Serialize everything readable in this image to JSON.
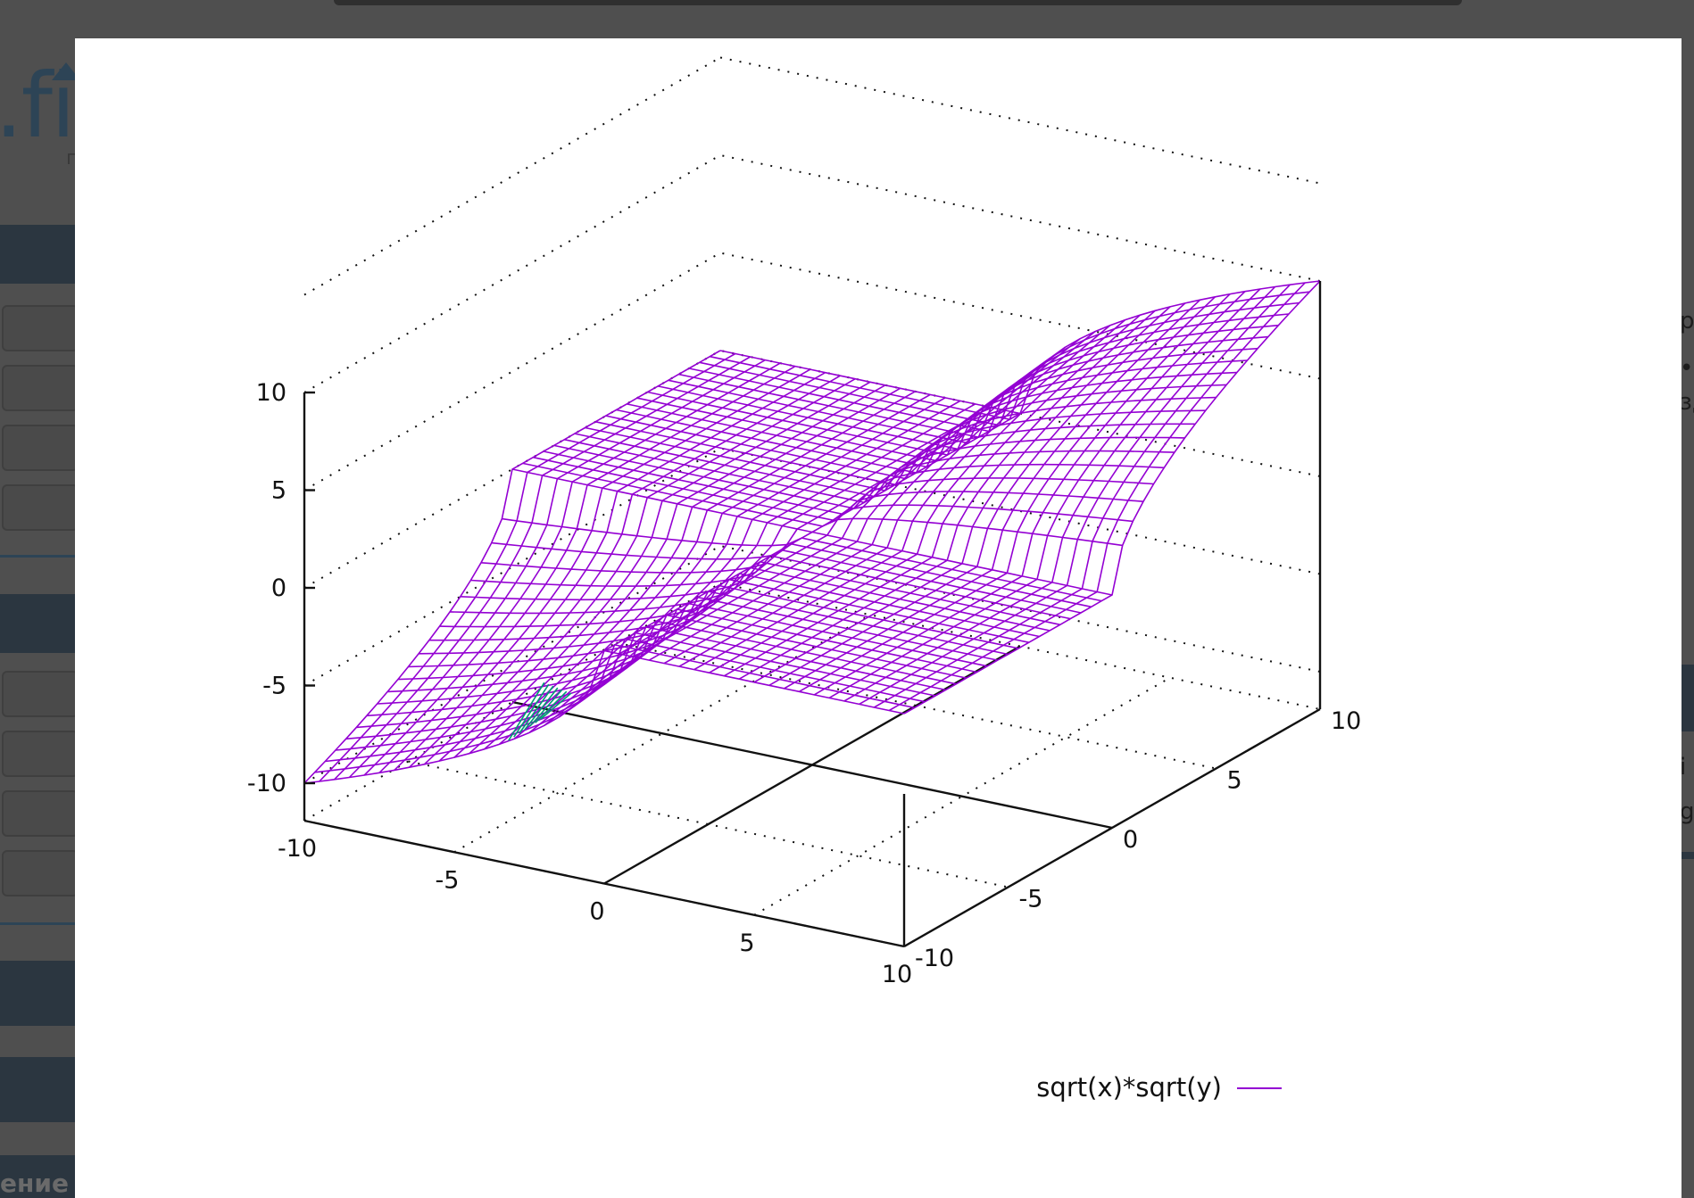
{
  "background": {
    "logo_text": ".fik",
    "logo_sub": "г",
    "bottom_text": "ение",
    "right_texts": [
      "р",
      "•",
      "зд",
      "i",
      "g"
    ]
  },
  "chart_data": {
    "type": "surface",
    "series": [
      {
        "name": "sqrt(x)*sqrt(y)",
        "color": "#9400d3",
        "style": "wireframe mesh"
      }
    ],
    "function": "sqrt(x)*sqrt(y)",
    "x": {
      "range": [
        -10,
        10
      ],
      "ticks": [
        -10,
        -5,
        0,
        5,
        10
      ]
    },
    "y": {
      "range": [
        -10,
        10
      ],
      "ticks": [
        -10,
        -5,
        0,
        5,
        10
      ]
    },
    "z": {
      "range": [
        -10,
        10
      ],
      "ticks": [
        -10,
        -5,
        0,
        5,
        10
      ]
    },
    "grid": true,
    "legend_position": "bottom-right",
    "accent_colors": {
      "surface": "#9400d3",
      "underside": "#009e73"
    }
  }
}
